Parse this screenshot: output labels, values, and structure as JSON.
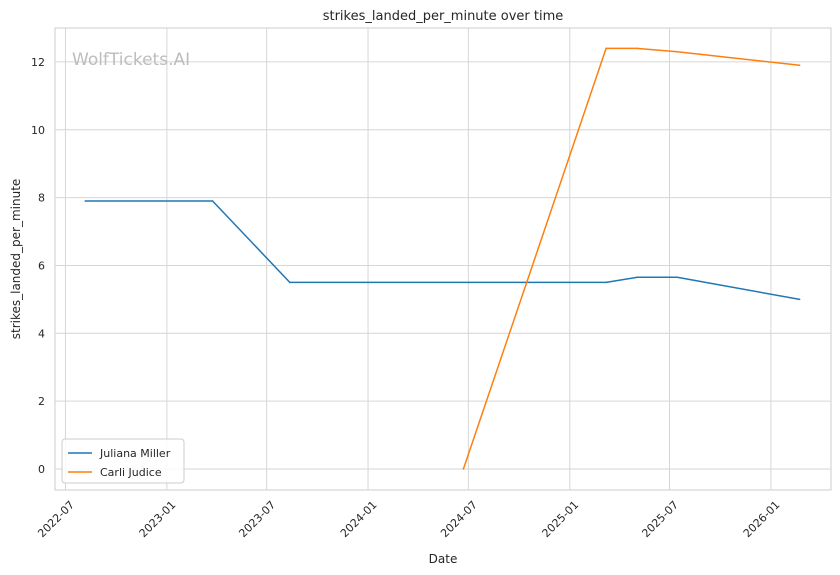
{
  "chart_data": {
    "type": "line",
    "title": "strikes_landed_per_minute over time",
    "xlabel": "Date",
    "ylabel": "strikes_landed_per_minute",
    "watermark": "WolfTickets.AI",
    "x_axis_type": "date",
    "xlim": [
      "2022-06-12",
      "2026-04-20"
    ],
    "ylim": [
      -0.62,
      13.0
    ],
    "x_ticks": [
      "2022-07",
      "2023-01",
      "2023-07",
      "2024-01",
      "2024-07",
      "2025-01",
      "2025-07",
      "2026-01"
    ],
    "y_ticks": [
      0,
      2,
      4,
      6,
      8,
      10,
      12
    ],
    "grid": true,
    "legend_position": "lower-left",
    "series": [
      {
        "name": "Juliana Miller",
        "color": "#1f77b4",
        "points": [
          {
            "x": "2022-08-06",
            "y": 7.9
          },
          {
            "x": "2023-03-25",
            "y": 7.9
          },
          {
            "x": "2023-08-12",
            "y": 5.5
          },
          {
            "x": "2025-03-08",
            "y": 5.5
          },
          {
            "x": "2025-05-03",
            "y": 5.65
          },
          {
            "x": "2025-07-15",
            "y": 5.65
          },
          {
            "x": "2026-02-22",
            "y": 5.0
          }
        ]
      },
      {
        "name": "Carli Judice",
        "color": "#ff7f0e",
        "points": [
          {
            "x": "2024-06-22",
            "y": 0.0
          },
          {
            "x": "2025-03-08",
            "y": 12.4
          },
          {
            "x": "2025-05-03",
            "y": 12.4
          },
          {
            "x": "2025-07-15",
            "y": 12.3
          },
          {
            "x": "2026-02-22",
            "y": 11.9
          }
        ]
      }
    ]
  }
}
